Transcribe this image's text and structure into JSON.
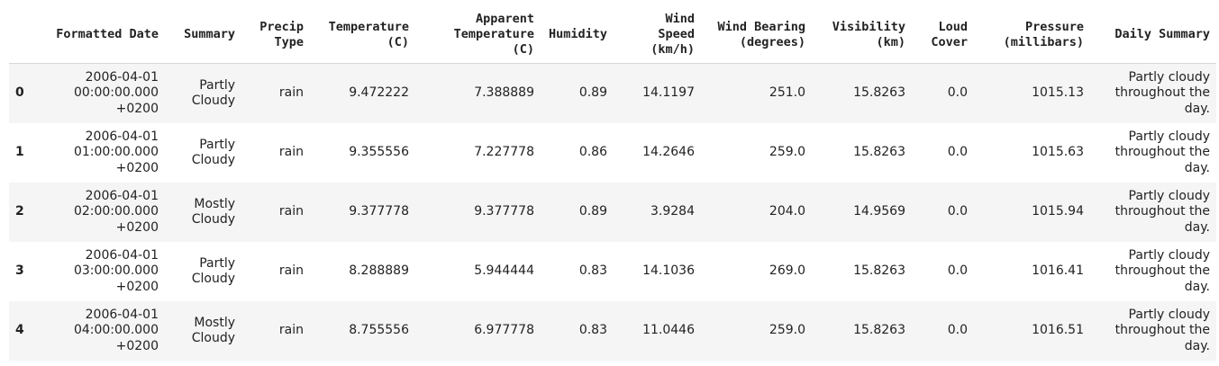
{
  "table": {
    "columns": [
      "",
      "Formatted Date",
      "Summary",
      "Precip\nType",
      "Temperature\n(C)",
      "Apparent\nTemperature\n(C)",
      "Humidity",
      "Wind\nSpeed\n(km/h)",
      "Wind Bearing\n(degrees)",
      "Visibility\n(km)",
      "Loud\nCover",
      "Pressure\n(millibars)",
      "Daily Summary"
    ],
    "rows": [
      {
        "index": "0",
        "formatted_date": "2006-04-01\n00:00:00.000\n+0200",
        "summary": "Partly\nCloudy",
        "precip_type": "rain",
        "temperature": "9.472222",
        "apparent_temperature": "7.388889",
        "humidity": "0.89",
        "wind_speed": "14.1197",
        "wind_bearing": "251.0",
        "visibility": "15.8263",
        "loud_cover": "0.0",
        "pressure": "1015.13",
        "daily_summary": "Partly cloudy throughout the day."
      },
      {
        "index": "1",
        "formatted_date": "2006-04-01\n01:00:00.000\n+0200",
        "summary": "Partly\nCloudy",
        "precip_type": "rain",
        "temperature": "9.355556",
        "apparent_temperature": "7.227778",
        "humidity": "0.86",
        "wind_speed": "14.2646",
        "wind_bearing": "259.0",
        "visibility": "15.8263",
        "loud_cover": "0.0",
        "pressure": "1015.63",
        "daily_summary": "Partly cloudy throughout the day."
      },
      {
        "index": "2",
        "formatted_date": "2006-04-01\n02:00:00.000\n+0200",
        "summary": "Mostly\nCloudy",
        "precip_type": "rain",
        "temperature": "9.377778",
        "apparent_temperature": "9.377778",
        "humidity": "0.89",
        "wind_speed": "3.9284",
        "wind_bearing": "204.0",
        "visibility": "14.9569",
        "loud_cover": "0.0",
        "pressure": "1015.94",
        "daily_summary": "Partly cloudy throughout the day."
      },
      {
        "index": "3",
        "formatted_date": "2006-04-01\n03:00:00.000\n+0200",
        "summary": "Partly\nCloudy",
        "precip_type": "rain",
        "temperature": "8.288889",
        "apparent_temperature": "5.944444",
        "humidity": "0.83",
        "wind_speed": "14.1036",
        "wind_bearing": "269.0",
        "visibility": "15.8263",
        "loud_cover": "0.0",
        "pressure": "1016.41",
        "daily_summary": "Partly cloudy throughout the day."
      },
      {
        "index": "4",
        "formatted_date": "2006-04-01\n04:00:00.000\n+0200",
        "summary": "Mostly\nCloudy",
        "precip_type": "rain",
        "temperature": "8.755556",
        "apparent_temperature": "6.977778",
        "humidity": "0.83",
        "wind_speed": "11.0446",
        "wind_bearing": "259.0",
        "visibility": "15.8263",
        "loud_cover": "0.0",
        "pressure": "1016.51",
        "daily_summary": "Partly cloudy throughout the day."
      }
    ]
  }
}
